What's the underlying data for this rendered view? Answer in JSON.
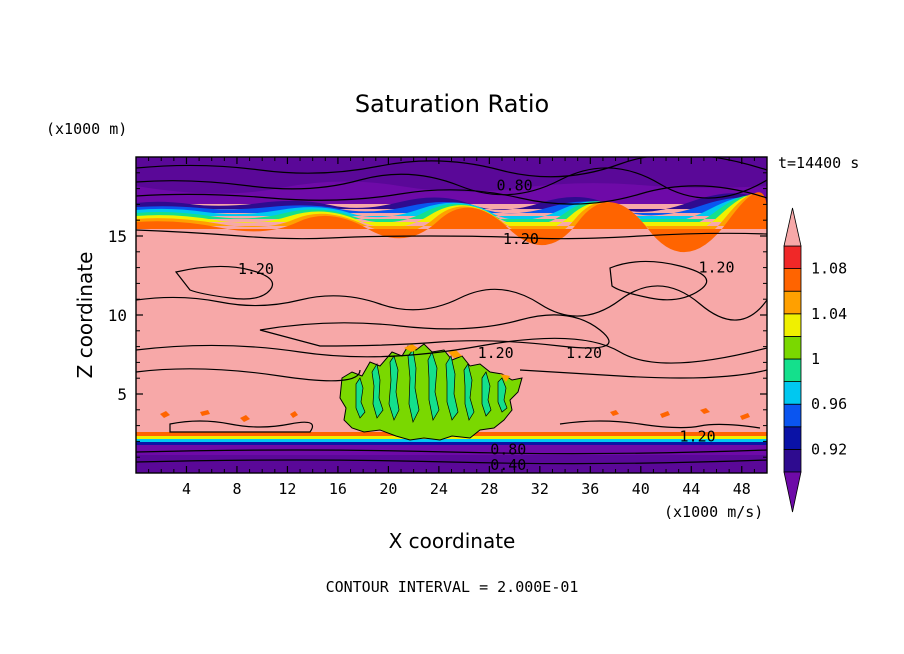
{
  "chart_data": {
    "type": "heatmap",
    "title": "Saturation Ratio",
    "xlabel": "X coordinate",
    "ylabel": "Z coordinate",
    "y_unit": "(x1000 m)",
    "x_unit": "(x1000 m/s)",
    "time_label": "t=14400 s",
    "footer": "CONTOUR INTERVAL = 2.000E-01",
    "xlim": [
      0,
      50
    ],
    "ylim": [
      0,
      20
    ],
    "x_ticks": [
      "4",
      "8",
      "12",
      "16",
      "20",
      "24",
      "28",
      "32",
      "36",
      "40",
      "44",
      "48"
    ],
    "y_ticks": [
      "5",
      "10",
      "15"
    ],
    "x_tick_values": [
      4,
      8,
      12,
      16,
      20,
      24,
      28,
      32,
      36,
      40,
      44,
      48
    ],
    "y_tick_values": [
      5,
      10,
      15
    ],
    "colorbar": {
      "levels": [
        0.9,
        0.92,
        0.94,
        0.96,
        0.98,
        1.0,
        1.02,
        1.04,
        1.06,
        1.08,
        1.1
      ],
      "tick_labels": [
        "0.92",
        "0.96",
        "1",
        "1.04",
        "1.08"
      ],
      "tick_values": [
        0.92,
        0.96,
        1.0,
        1.04,
        1.08
      ],
      "colors": [
        "#2e0b8f",
        "#0a12a6",
        "#0a55f0",
        "#00c8f0",
        "#14e08c",
        "#7ad800",
        "#f0f000",
        "#ffa000",
        "#ff6400",
        "#f02828"
      ],
      "under_color": "#6e0aa8",
      "over_color": "#f7a8a8"
    },
    "contour_labels": [
      {
        "text": "0.80",
        "x": 30,
        "y": 18.2
      },
      {
        "text": "1.20",
        "x": 30.5,
        "y": 14.8
      },
      {
        "text": "1.20",
        "x": 9.5,
        "y": 12.9
      },
      {
        "text": "1.20",
        "x": 46,
        "y": 13.0
      },
      {
        "text": "1.20",
        "x": 28.5,
        "y": 7.6
      },
      {
        "text": "1.20",
        "x": 35.5,
        "y": 7.6
      },
      {
        "text": "1.20",
        "x": 44.5,
        "y": 2.3
      },
      {
        "text": "0.80",
        "x": 29.5,
        "y": 1.5
      },
      {
        "text": "0.40",
        "x": 29.5,
        "y": 0.5
      }
    ]
  }
}
